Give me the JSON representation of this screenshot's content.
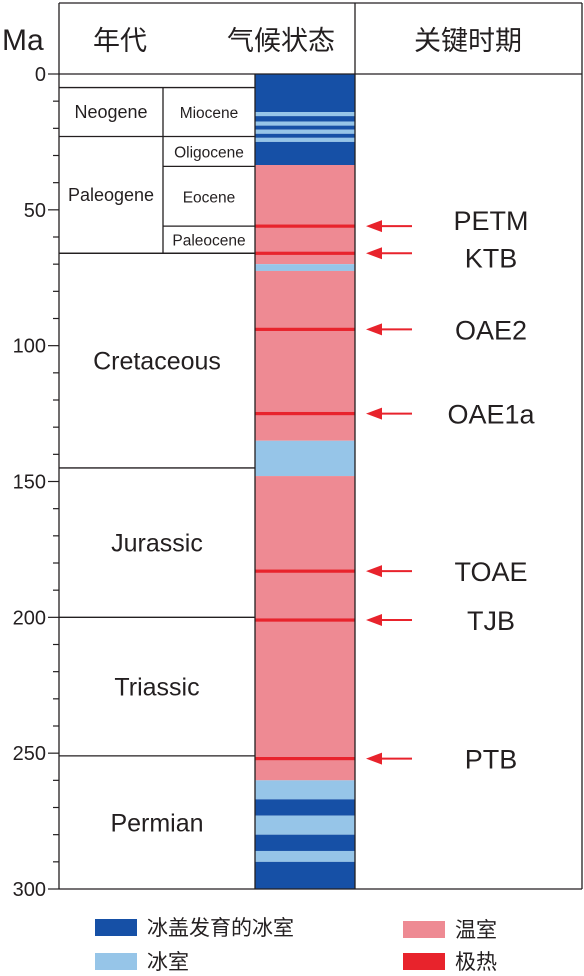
{
  "axis": {
    "unit": "Ma",
    "ticks": [
      0,
      50,
      100,
      150,
      200,
      250,
      300
    ],
    "min": 0,
    "max": 300
  },
  "headers": {
    "era": "年代",
    "climate": "气候状态",
    "events": "关键时期"
  },
  "periods": [
    {
      "name": "Neogene",
      "start": 5,
      "end": 23,
      "type": "period"
    },
    {
      "name": "Paleogene",
      "start": 23,
      "end": 66,
      "type": "period"
    },
    {
      "name": "Cretaceous",
      "start": 66,
      "end": 145,
      "type": "period"
    },
    {
      "name": "Jurassic",
      "start": 145,
      "end": 200,
      "type": "period"
    },
    {
      "name": "Triassic",
      "start": 200,
      "end": 251,
      "type": "period"
    },
    {
      "name": "Permian",
      "start": 251,
      "end": 300,
      "type": "period"
    }
  ],
  "epochs": [
    {
      "name": "Miocene",
      "start": 5,
      "end": 23
    },
    {
      "name": "Oligocene",
      "start": 23,
      "end": 34
    },
    {
      "name": "Eocene",
      "start": 34,
      "end": 56
    },
    {
      "name": "Paleocene",
      "start": 56,
      "end": 66
    }
  ],
  "climate_bands": [
    {
      "start": 0,
      "end": 14,
      "state": "glaciated"
    },
    {
      "start": 14,
      "end": 15.5,
      "state": "icehouse"
    },
    {
      "start": 15.5,
      "end": 17.5,
      "state": "glaciated"
    },
    {
      "start": 17.5,
      "end": 19,
      "state": "icehouse"
    },
    {
      "start": 19,
      "end": 20.5,
      "state": "glaciated"
    },
    {
      "start": 20.5,
      "end": 22,
      "state": "icehouse"
    },
    {
      "start": 22,
      "end": 23.5,
      "state": "glaciated"
    },
    {
      "start": 23.5,
      "end": 25,
      "state": "icehouse"
    },
    {
      "start": 25,
      "end": 33.5,
      "state": "glaciated"
    },
    {
      "start": 33.5,
      "end": 70,
      "state": "greenhouse"
    },
    {
      "start": 70,
      "end": 72.5,
      "state": "icehouse"
    },
    {
      "start": 72.5,
      "end": 135,
      "state": "greenhouse"
    },
    {
      "start": 135,
      "end": 148,
      "state": "icehouse"
    },
    {
      "start": 148,
      "end": 260,
      "state": "greenhouse"
    },
    {
      "start": 260,
      "end": 267,
      "state": "icehouse"
    },
    {
      "start": 267,
      "end": 273,
      "state": "glaciated"
    },
    {
      "start": 273,
      "end": 280,
      "state": "icehouse"
    },
    {
      "start": 280,
      "end": 286,
      "state": "glaciated"
    },
    {
      "start": 286,
      "end": 290,
      "state": "icehouse"
    },
    {
      "start": 290,
      "end": 300,
      "state": "glaciated"
    }
  ],
  "events": [
    {
      "label": "PETM",
      "age": 56
    },
    {
      "label": "KTB",
      "age": 66
    },
    {
      "label": "OAE2",
      "age": 94
    },
    {
      "label": "OAE1a",
      "age": 125
    },
    {
      "label": "TOAE",
      "age": 183
    },
    {
      "label": "TJB",
      "age": 201
    },
    {
      "label": "PTB",
      "age": 252
    }
  ],
  "colors": {
    "glaciated": "#1650a6",
    "icehouse": "#96c5e8",
    "greenhouse": "#ee8a93",
    "hyperthermal": "#e8232c",
    "arrow": "#e8232c",
    "frame": "#231f20"
  },
  "legend": [
    {
      "key": "glaciated",
      "label": "冰盖发育的冰室",
      "color": "#1650a6"
    },
    {
      "key": "icehouse",
      "label": "冰室",
      "color": "#96c5e8"
    },
    {
      "key": "greenhouse",
      "label": "温室",
      "color": "#ee8a93"
    },
    {
      "key": "hyperthermal",
      "label": "极热",
      "color": "#e8232c"
    }
  ]
}
